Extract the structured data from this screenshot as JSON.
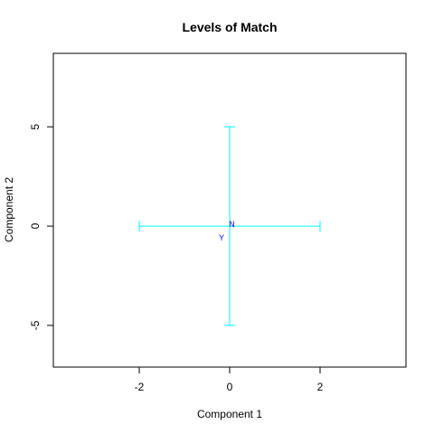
{
  "chart_data": {
    "type": "scatter",
    "title": "Levels of Match",
    "xlabel": "Component 1",
    "ylabel": "Component 2",
    "xlim": [
      -3.9,
      3.9
    ],
    "ylim": [
      -7.1,
      8.7
    ],
    "x_ticks": [
      -2,
      0,
      2
    ],
    "y_ticks": [
      -5,
      0,
      5
    ],
    "grid": false,
    "axis_line_color": "#000000",
    "box_color": "#000000",
    "cross_color": "#00FFFF",
    "label_color": "#0000FF",
    "cross": {
      "center": [
        0,
        0
      ],
      "x_extent": [
        -2,
        2
      ],
      "y_extent": [
        -5,
        5
      ]
    },
    "points": [
      {
        "label": "N",
        "x": 0.05,
        "y": 0.1
      },
      {
        "label": "Y",
        "x": -0.18,
        "y": -0.58
      }
    ]
  }
}
